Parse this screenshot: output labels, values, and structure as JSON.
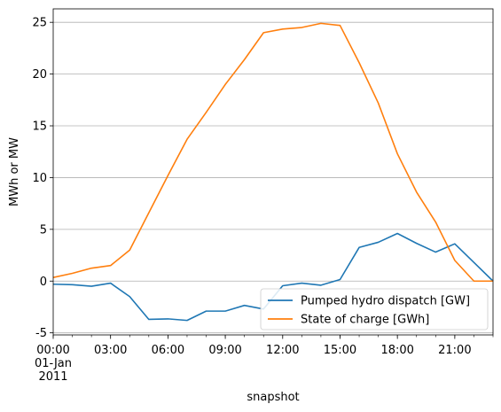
{
  "chart_data": {
    "type": "line",
    "xlabel": "snapshot",
    "ylabel": "MWh or MW",
    "xlim": [
      0,
      23
    ],
    "ylim": [
      -5.2,
      26.3
    ],
    "grid": "y-major",
    "legend_position": "lower-right",
    "x_ticks": [
      {
        "x": 0,
        "lines": [
          "00:00",
          "01-Jan",
          "2011"
        ]
      },
      {
        "x": 3,
        "lines": [
          "03:00"
        ]
      },
      {
        "x": 6,
        "lines": [
          "06:00"
        ]
      },
      {
        "x": 9,
        "lines": [
          "09:00"
        ]
      },
      {
        "x": 12,
        "lines": [
          "12:00"
        ]
      },
      {
        "x": 15,
        "lines": [
          "15:00"
        ]
      },
      {
        "x": 18,
        "lines": [
          "18:00"
        ]
      },
      {
        "x": 21,
        "lines": [
          "21:00"
        ]
      }
    ],
    "y_ticks": [
      -5,
      0,
      5,
      10,
      15,
      20,
      25
    ],
    "x_hours": [
      0,
      1,
      2,
      3,
      4,
      5,
      6,
      7,
      8,
      9,
      10,
      11,
      12,
      13,
      14,
      15,
      16,
      17,
      18,
      19,
      20,
      21,
      22,
      23
    ],
    "series": [
      {
        "name": "Pumped hydro dispatch [GW]",
        "color": "#1f77b4",
        "values": [
          -0.3,
          -0.35,
          -0.5,
          -0.2,
          -1.5,
          -3.7,
          -3.65,
          -3.8,
          -2.9,
          -2.9,
          -2.35,
          -2.7,
          -0.45,
          -0.2,
          -0.4,
          0.15,
          3.25,
          3.75,
          4.6,
          3.65,
          2.8,
          3.6,
          1.8,
          0.0
        ]
      },
      {
        "name": "State of charge [GWh]",
        "color": "#ff7f0e",
        "values": [
          0.35,
          0.75,
          1.25,
          1.5,
          3.0,
          6.6,
          10.2,
          13.7,
          16.3,
          19.0,
          21.4,
          24.0,
          24.35,
          24.5,
          24.9,
          24.7,
          21.1,
          17.2,
          12.3,
          8.6,
          5.7,
          2.0,
          0.0,
          0.0
        ]
      }
    ]
  }
}
